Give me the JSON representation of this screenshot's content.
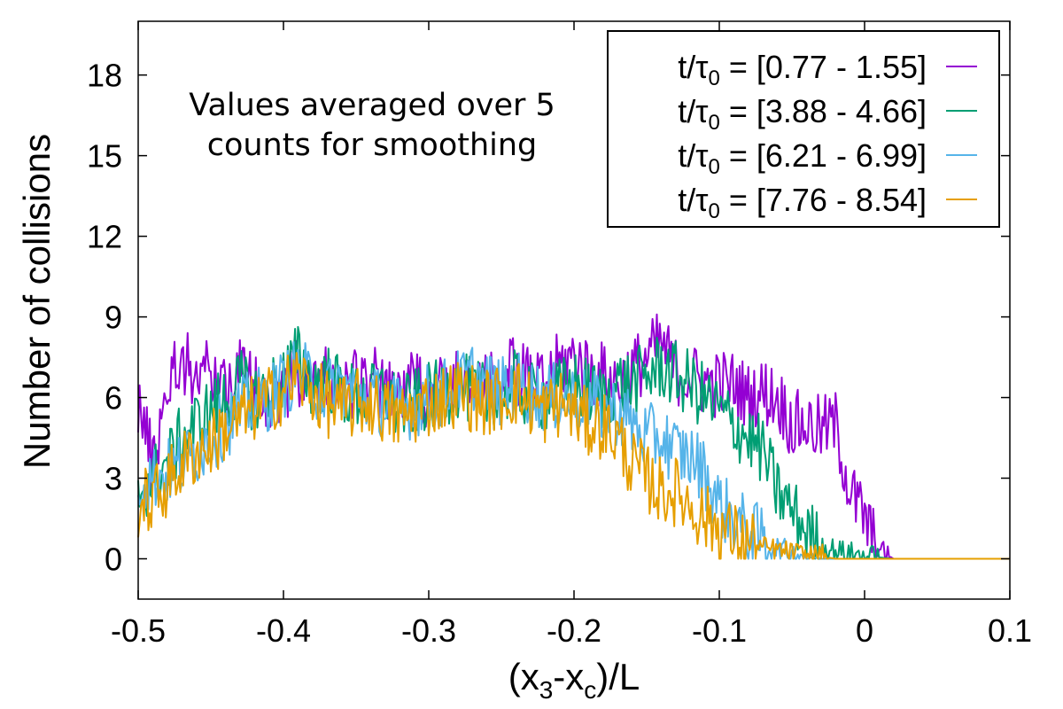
{
  "chart_data": {
    "type": "line",
    "xlabel": "(x3-xc)/L",
    "xlabel_parts": {
      "open": "(x",
      "sub1": "3",
      "mid": "-x",
      "sub2": "c",
      "close": ")/L"
    },
    "ylabel": "Number of collisions",
    "xlim": [
      -0.5,
      0.1
    ],
    "ylim": [
      -1.5,
      20
    ],
    "xticks": [
      -0.5,
      -0.4,
      -0.3,
      -0.2,
      -0.1,
      0,
      0.1
    ],
    "xtick_labels": [
      "-0.5",
      "-0.4",
      "-0.3",
      "-0.2",
      "-0.1",
      "0",
      "0.1"
    ],
    "yticks": [
      0,
      3,
      6,
      9,
      12,
      15,
      18
    ],
    "ytick_labels": [
      "0",
      "3",
      "6",
      "9",
      "12",
      "15",
      "18"
    ],
    "annotation": [
      "Values averaged over 5",
      "counts for smoothing"
    ],
    "legend": {
      "position": "top-right",
      "prefix": "t/τ",
      "sub": "0",
      "equals": " = "
    },
    "series": [
      {
        "name": "t/τ0 = [0.77 - 1.55]",
        "range_label": "[0.77 - 1.55]",
        "color": "#9400d3",
        "x": [
          -0.5,
          -0.49,
          -0.48,
          -0.47,
          -0.46,
          -0.45,
          -0.44,
          -0.43,
          -0.42,
          -0.41,
          -0.4,
          -0.39,
          -0.38,
          -0.37,
          -0.36,
          -0.35,
          -0.34,
          -0.33,
          -0.32,
          -0.31,
          -0.3,
          -0.29,
          -0.28,
          -0.27,
          -0.26,
          -0.25,
          -0.24,
          -0.23,
          -0.22,
          -0.21,
          -0.2,
          -0.19,
          -0.18,
          -0.17,
          -0.16,
          -0.15,
          -0.14,
          -0.13,
          -0.12,
          -0.11,
          -0.1,
          -0.09,
          -0.08,
          -0.07,
          -0.06,
          -0.05,
          -0.04,
          -0.03,
          -0.02,
          -0.01,
          0.0,
          0.005,
          0.01,
          0.02,
          0.04,
          0.06,
          0.08,
          0.1
        ],
        "y": [
          6,
          3.5,
          6.5,
          7.5,
          6.8,
          7,
          6.5,
          7,
          6.5,
          6,
          6.3,
          7,
          6.5,
          6.8,
          6.2,
          6.5,
          7,
          6,
          6.2,
          6.5,
          6,
          6.5,
          6.5,
          6.2,
          6.3,
          6.8,
          7,
          6.5,
          6.5,
          7.2,
          7.5,
          7,
          6.8,
          6.5,
          7,
          7.5,
          8,
          7,
          6.8,
          6.5,
          6.5,
          6.5,
          6,
          6.2,
          6,
          5,
          5,
          4.8,
          5,
          2.5,
          1.5,
          0.8,
          0.3,
          0,
          0,
          0,
          0,
          0
        ]
      },
      {
        "name": "t/τ0 = [3.88 - 4.66]",
        "range_label": "[3.88 - 4.66]",
        "color": "#009e73",
        "x": [
          -0.5,
          -0.49,
          -0.48,
          -0.47,
          -0.46,
          -0.45,
          -0.44,
          -0.43,
          -0.42,
          -0.41,
          -0.4,
          -0.39,
          -0.38,
          -0.37,
          -0.36,
          -0.35,
          -0.34,
          -0.33,
          -0.32,
          -0.31,
          -0.3,
          -0.29,
          -0.28,
          -0.27,
          -0.26,
          -0.25,
          -0.24,
          -0.23,
          -0.22,
          -0.21,
          -0.2,
          -0.19,
          -0.18,
          -0.17,
          -0.16,
          -0.15,
          -0.14,
          -0.13,
          -0.12,
          -0.11,
          -0.1,
          -0.09,
          -0.08,
          -0.07,
          -0.06,
          -0.05,
          -0.04,
          -0.03,
          -0.02,
          -0.01,
          0.0,
          0.02,
          0.04,
          0.06,
          0.08,
          0.1
        ],
        "y": [
          2.5,
          3,
          3.5,
          4.5,
          5,
          5.5,
          6,
          6.5,
          6,
          6.2,
          6.8,
          7.5,
          6.5,
          6.8,
          6.2,
          6,
          6,
          6.2,
          5.5,
          5.8,
          6,
          6.2,
          6.5,
          6.2,
          6,
          6.2,
          6.5,
          6,
          6,
          6.2,
          6.5,
          6.2,
          6,
          6.5,
          6.5,
          6.8,
          7.2,
          6.8,
          6.5,
          6,
          5.5,
          5,
          4.5,
          4,
          2.5,
          1.8,
          1,
          0.5,
          0.3,
          0.2,
          0.1,
          0,
          0,
          0,
          0,
          0
        ]
      },
      {
        "name": "t/τ0 = [6.21 - 6.99]",
        "range_label": "[6.21 - 6.99]",
        "color": "#56b4e9",
        "x": [
          -0.5,
          -0.49,
          -0.48,
          -0.47,
          -0.46,
          -0.45,
          -0.44,
          -0.43,
          -0.42,
          -0.41,
          -0.4,
          -0.39,
          -0.38,
          -0.37,
          -0.36,
          -0.35,
          -0.34,
          -0.33,
          -0.32,
          -0.31,
          -0.3,
          -0.29,
          -0.28,
          -0.27,
          -0.26,
          -0.25,
          -0.24,
          -0.23,
          -0.22,
          -0.21,
          -0.2,
          -0.19,
          -0.18,
          -0.17,
          -0.16,
          -0.15,
          -0.14,
          -0.13,
          -0.12,
          -0.11,
          -0.1,
          -0.09,
          -0.08,
          -0.07,
          -0.06,
          -0.05,
          -0.04,
          -0.03,
          -0.02,
          -0.01,
          0.0,
          0.02,
          0.04,
          0.06,
          0.08,
          0.1
        ],
        "y": [
          3,
          3,
          3.2,
          3.5,
          4,
          4.5,
          5,
          5.5,
          5.8,
          6,
          6.5,
          7,
          6.5,
          6.2,
          6.5,
          6.2,
          6,
          5.8,
          5.5,
          5.8,
          6,
          6.2,
          6.5,
          6.8,
          6.5,
          6.2,
          6.5,
          6.2,
          6,
          6,
          6,
          5.8,
          5.5,
          5.5,
          5,
          4.5,
          4.5,
          4,
          3.8,
          3.2,
          2,
          1.5,
          1,
          0.7,
          0.4,
          0.2,
          0.1,
          0,
          0,
          0,
          0,
          0,
          0,
          0,
          0,
          0
        ]
      },
      {
        "name": "t/τ0 = [7.76 - 8.54]",
        "range_label": "[7.76 - 8.54]",
        "color": "#e69f00",
        "x": [
          -0.5,
          -0.49,
          -0.48,
          -0.47,
          -0.46,
          -0.45,
          -0.44,
          -0.43,
          -0.42,
          -0.41,
          -0.4,
          -0.39,
          -0.38,
          -0.37,
          -0.36,
          -0.35,
          -0.34,
          -0.33,
          -0.32,
          -0.31,
          -0.3,
          -0.29,
          -0.28,
          -0.27,
          -0.26,
          -0.25,
          -0.24,
          -0.23,
          -0.22,
          -0.21,
          -0.2,
          -0.19,
          -0.18,
          -0.17,
          -0.16,
          -0.15,
          -0.14,
          -0.13,
          -0.12,
          -0.11,
          -0.1,
          -0.09,
          -0.08,
          -0.07,
          -0.06,
          -0.05,
          -0.04,
          -0.03,
          -0.02,
          -0.01,
          0.0,
          0.02,
          0.04,
          0.06,
          0.08,
          0.1
        ],
        "y": [
          2,
          2.2,
          2.8,
          3.5,
          4,
          4.3,
          4.8,
          5.2,
          5.6,
          5.9,
          6.3,
          6.8,
          6.2,
          5.8,
          5.5,
          5.8,
          5.8,
          5.5,
          5.2,
          5.5,
          5.8,
          6,
          6.2,
          6,
          5.8,
          6,
          6.2,
          5.8,
          5.5,
          5.8,
          5.5,
          5,
          5,
          4.5,
          3.5,
          3,
          2.5,
          2.5,
          2,
          1.5,
          1.2,
          0.8,
          0.6,
          0.4,
          0.3,
          0.2,
          0.1,
          0.1,
          0,
          0,
          0,
          0,
          0,
          0,
          0,
          0
        ]
      }
    ]
  }
}
